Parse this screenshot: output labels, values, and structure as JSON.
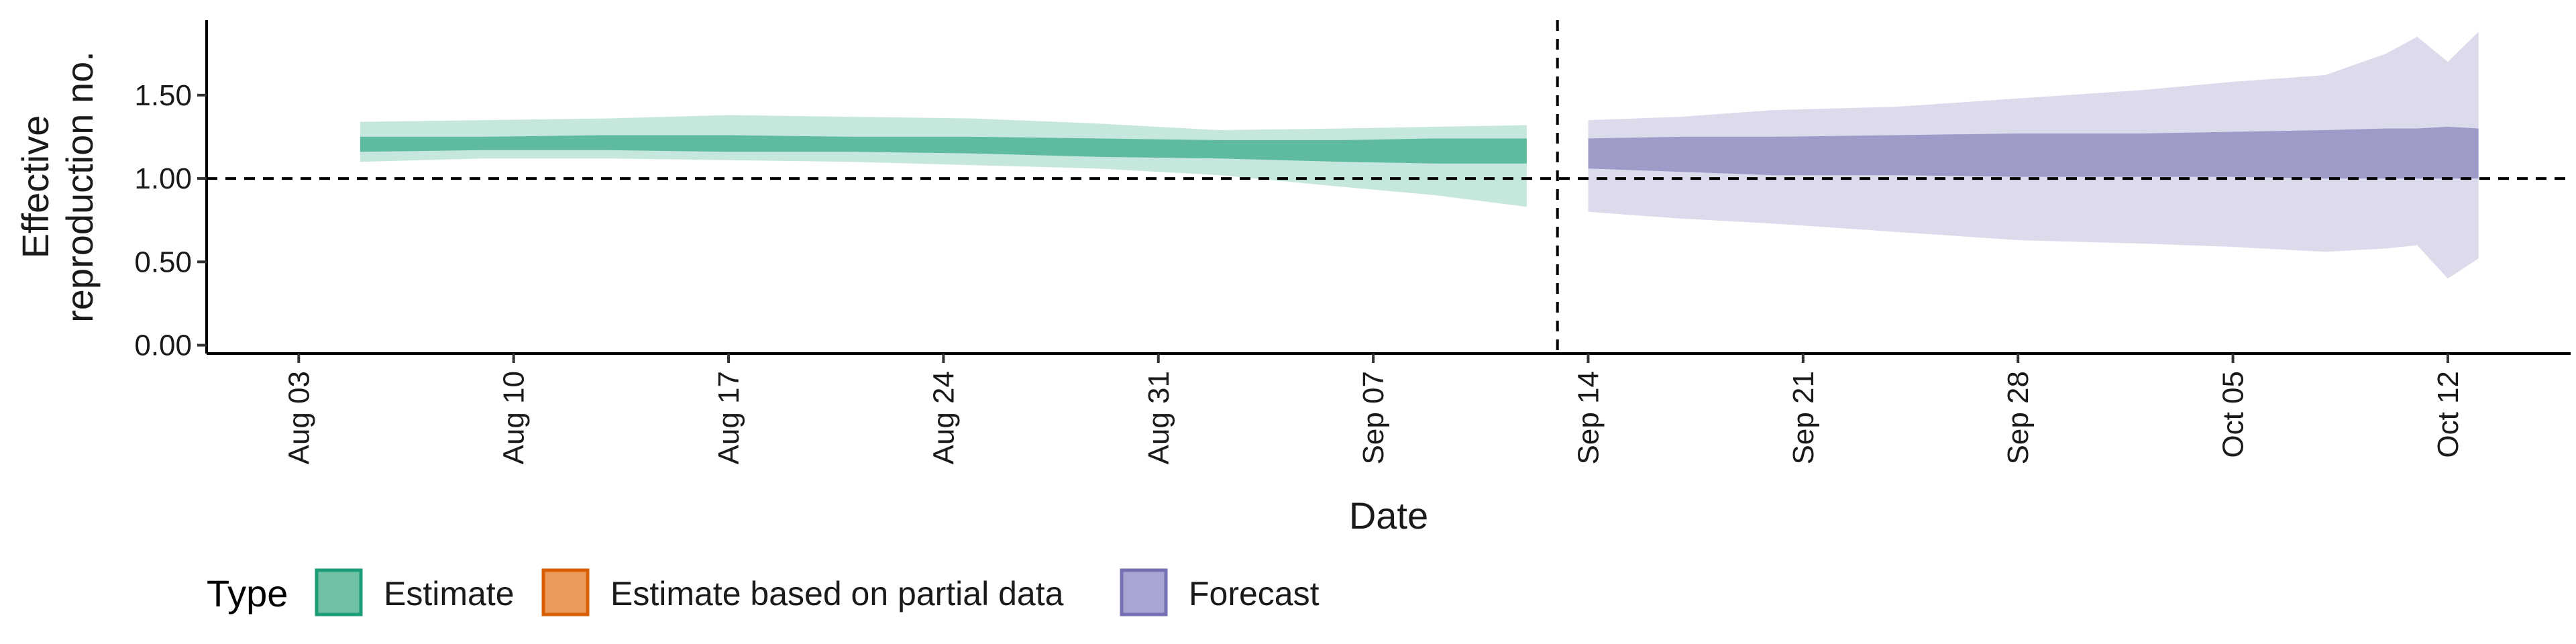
{
  "chart_data": {
    "type": "area",
    "ylabel_lines": [
      "Effective",
      "reproduction no."
    ],
    "xlabel": "Date",
    "ylim": [
      -0.05,
      1.95
    ],
    "yticks": [
      0.0,
      0.5,
      1.0,
      1.5
    ],
    "ytick_labels": [
      "0.00",
      "0.50",
      "1.00",
      "1.50"
    ],
    "xlim": [
      "2020-07-31",
      "2020-10-16"
    ],
    "xticks": [
      "2020-08-03",
      "2020-08-10",
      "2020-08-17",
      "2020-08-24",
      "2020-08-31",
      "2020-09-07",
      "2020-09-14",
      "2020-09-21",
      "2020-09-28",
      "2020-10-05",
      "2020-10-12"
    ],
    "xtick_labels": [
      "Aug 03",
      "Aug 10",
      "Aug 17",
      "Aug 24",
      "Aug 31",
      "Sep 07",
      "Sep 14",
      "Sep 21",
      "Sep 28",
      "Oct 05",
      "Oct 12"
    ],
    "reference_line_y": 1.0,
    "vertical_line_x": "2020-09-13",
    "grid": false,
    "series": [
      {
        "name": "Estimate",
        "color": "#1b9e77",
        "x": [
          "2020-08-05",
          "2020-08-09",
          "2020-08-13",
          "2020-08-17",
          "2020-08-21",
          "2020-08-25",
          "2020-08-29",
          "2020-09-02",
          "2020-09-06",
          "2020-09-09",
          "2020-09-12"
        ],
        "outer_upper": [
          1.34,
          1.35,
          1.36,
          1.38,
          1.37,
          1.36,
          1.33,
          1.29,
          1.3,
          1.31,
          1.32
        ],
        "outer_lower": [
          1.1,
          1.12,
          1.12,
          1.11,
          1.1,
          1.08,
          1.06,
          1.02,
          0.95,
          0.9,
          0.83
        ],
        "inner_upper": [
          1.25,
          1.25,
          1.26,
          1.26,
          1.25,
          1.25,
          1.24,
          1.23,
          1.23,
          1.24,
          1.24
        ],
        "inner_lower": [
          1.16,
          1.17,
          1.17,
          1.16,
          1.16,
          1.15,
          1.13,
          1.12,
          1.1,
          1.09,
          1.09
        ]
      },
      {
        "name": "Forecast",
        "color": "#7570b3",
        "x": [
          "2020-09-14",
          "2020-09-17",
          "2020-09-20",
          "2020-09-24",
          "2020-09-28",
          "2020-10-02",
          "2020-10-05",
          "2020-10-08",
          "2020-10-10",
          "2020-10-11",
          "2020-10-12",
          "2020-10-13"
        ],
        "outer_upper": [
          1.35,
          1.37,
          1.41,
          1.43,
          1.48,
          1.53,
          1.58,
          1.62,
          1.75,
          1.85,
          1.7,
          1.88
        ],
        "outer_lower": [
          0.8,
          0.76,
          0.73,
          0.68,
          0.63,
          0.61,
          0.59,
          0.56,
          0.58,
          0.6,
          0.4,
          0.52
        ],
        "inner_upper": [
          1.24,
          1.25,
          1.25,
          1.26,
          1.27,
          1.27,
          1.28,
          1.29,
          1.3,
          1.3,
          1.31,
          1.3
        ],
        "inner_lower": [
          1.06,
          1.04,
          1.02,
          1.02,
          1.01,
          1.01,
          1.01,
          1.0,
          1.0,
          1.0,
          1.0,
          1.0
        ]
      }
    ],
    "legend": {
      "title": "Type",
      "position": "bottom-left",
      "items": [
        {
          "label": "Estimate",
          "fill": "#71c1a7",
          "stroke": "#1b9e77"
        },
        {
          "label": "Estimate based on partial data",
          "fill": "#eb9a5e",
          "stroke": "#d95f02"
        },
        {
          "label": "Forecast",
          "fill": "#a8a5d4",
          "stroke": "#7570b3"
        }
      ]
    }
  }
}
